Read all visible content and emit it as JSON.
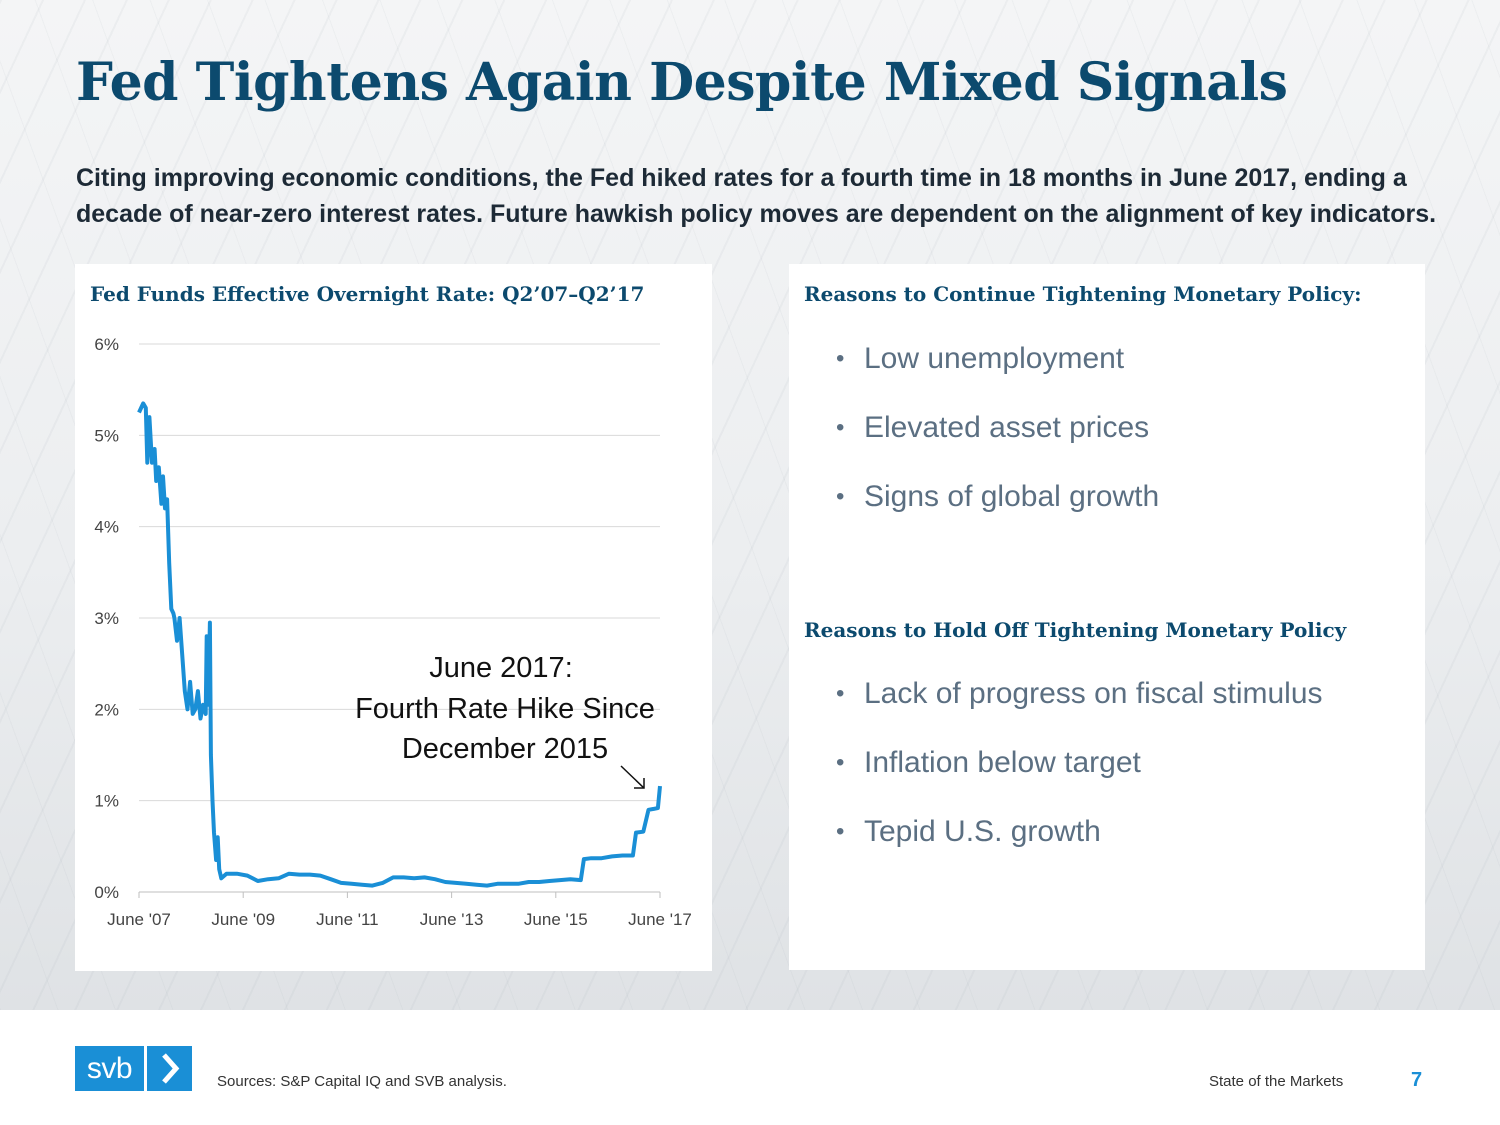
{
  "title": "Fed Tightens Again Despite Mixed Signals",
  "subtitle": "Citing improving economic conditions, the Fed hiked rates for a fourth time in 18 months in June 2017, ending a decade of near-zero interest rates. Future hawkish policy moves are dependent on the alignment of key indicators.",
  "colors": {
    "brand": "#0c4a6e",
    "accent": "#1a8fd6",
    "line": "#1a8fd6",
    "bullet_text": "#5b6f82"
  },
  "chart_data": {
    "type": "line",
    "title": "Fed Funds Effective Overnight Rate: Q2’07–Q2’17",
    "xlabel": "",
    "ylabel": "",
    "ylim": [
      0,
      6
    ],
    "xlim": [
      2007.42,
      2017.42
    ],
    "grid": true,
    "y_ticks": [
      0,
      1,
      2,
      3,
      4,
      5,
      6
    ],
    "y_tick_labels": [
      "0%",
      "1%",
      "2%",
      "3%",
      "4%",
      "5%",
      "6%"
    ],
    "x_ticks": [
      2007.42,
      2009.42,
      2011.42,
      2013.42,
      2015.42,
      2017.42
    ],
    "x_tick_labels": [
      "June '07",
      "June '09",
      "June '11",
      "June '13",
      "June '15",
      "June '17"
    ],
    "series": [
      {
        "name": "Fed Funds Effective Overnight Rate",
        "x": [
          2007.42,
          2007.5,
          2007.55,
          2007.58,
          2007.62,
          2007.67,
          2007.72,
          2007.75,
          2007.8,
          2007.85,
          2007.88,
          2007.92,
          2007.96,
          2008.0,
          2008.04,
          2008.08,
          2008.1,
          2008.15,
          2008.2,
          2008.25,
          2008.3,
          2008.35,
          2008.4,
          2008.45,
          2008.5,
          2008.55,
          2008.6,
          2008.65,
          2008.7,
          2008.72,
          2008.75,
          2008.78,
          2008.8,
          2008.83,
          2008.86,
          2008.9,
          2008.93,
          2008.96,
          2009.0,
          2009.1,
          2009.3,
          2009.5,
          2009.7,
          2009.9,
          2010.1,
          2010.3,
          2010.5,
          2010.7,
          2010.9,
          2011.1,
          2011.3,
          2011.5,
          2011.7,
          2011.9,
          2012.1,
          2012.3,
          2012.5,
          2012.7,
          2012.9,
          2013.1,
          2013.3,
          2013.5,
          2013.7,
          2013.9,
          2014.1,
          2014.3,
          2014.5,
          2014.7,
          2014.9,
          2015.1,
          2015.3,
          2015.5,
          2015.7,
          2015.9,
          2015.96,
          2016.1,
          2016.3,
          2016.5,
          2016.7,
          2016.9,
          2016.96,
          2017.1,
          2017.2,
          2017.3,
          2017.38,
          2017.42
        ],
        "values": [
          5.25,
          5.35,
          5.3,
          4.7,
          5.2,
          4.7,
          4.85,
          4.5,
          4.65,
          4.25,
          4.55,
          4.2,
          4.3,
          3.6,
          3.1,
          3.05,
          3.0,
          2.75,
          3.0,
          2.6,
          2.2,
          2.0,
          2.3,
          1.95,
          2.0,
          2.2,
          1.9,
          2.05,
          1.95,
          2.8,
          2.05,
          2.95,
          1.5,
          1.0,
          0.65,
          0.35,
          0.6,
          0.25,
          0.15,
          0.2,
          0.2,
          0.18,
          0.12,
          0.14,
          0.15,
          0.2,
          0.19,
          0.19,
          0.18,
          0.14,
          0.1,
          0.09,
          0.08,
          0.07,
          0.1,
          0.16,
          0.16,
          0.15,
          0.16,
          0.14,
          0.11,
          0.1,
          0.09,
          0.08,
          0.07,
          0.09,
          0.09,
          0.09,
          0.11,
          0.11,
          0.12,
          0.13,
          0.14,
          0.13,
          0.36,
          0.37,
          0.37,
          0.39,
          0.4,
          0.4,
          0.65,
          0.66,
          0.9,
          0.91,
          0.92,
          1.16
        ]
      }
    ],
    "annotation": {
      "lines": [
        "June 2017:",
        "Fourth Rate Hike Since",
        "December 2015"
      ],
      "target_x": 2017.42,
      "target_y": 1.16
    }
  },
  "right_panel": {
    "continue_heading": "Reasons to Continue Tightening Monetary Policy:",
    "continue_items": [
      "Low unemployment",
      "Elevated asset prices",
      "Signs of global growth"
    ],
    "hold_heading": "Reasons to Hold Off Tightening Monetary Policy",
    "hold_items": [
      "Lack of progress on fiscal stimulus",
      "Inflation below target",
      "Tepid U.S. growth"
    ]
  },
  "footer": {
    "logo_text": "svb",
    "sources": "Sources: S&P Capital IQ and SVB analysis.",
    "deck_title": "State of the Markets",
    "page_number": "7"
  }
}
